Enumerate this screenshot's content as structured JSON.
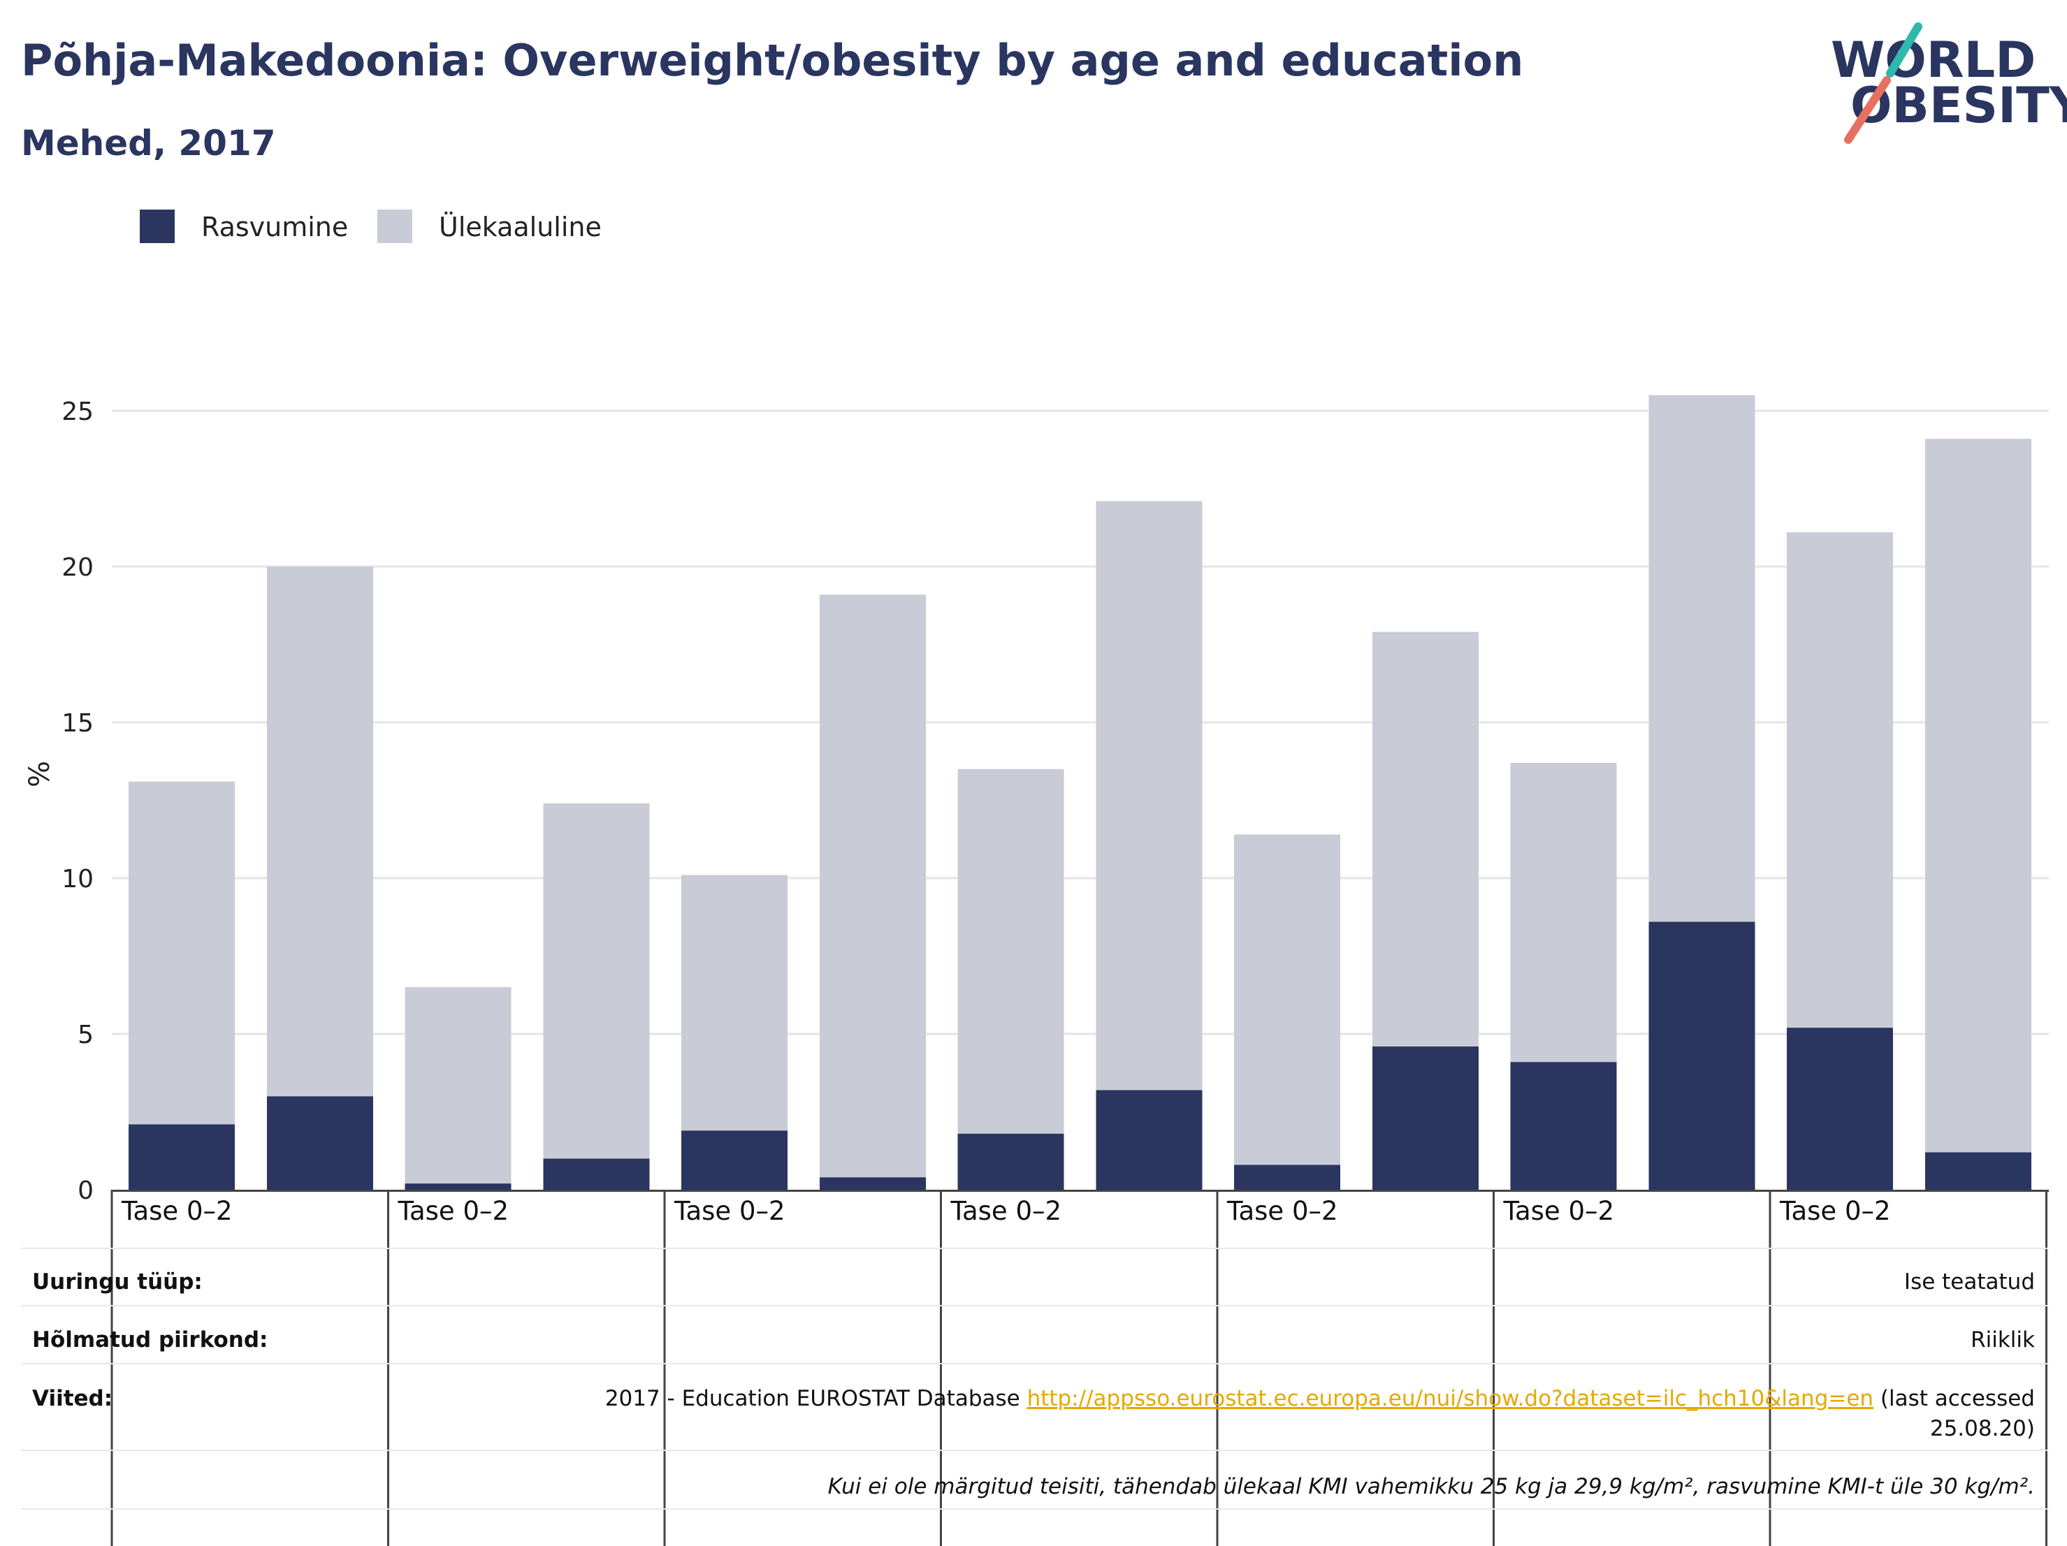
{
  "header": {
    "title": "Põhja-Makedoonia: Overweight/obesity by age and education",
    "subtitle": "Mehed, 2017"
  },
  "logo": {
    "line1": "WORLD",
    "line2": "OBESITY",
    "colors": {
      "teal": "#2fb8ac",
      "coral": "#e8705f",
      "navy": "#2a3560"
    }
  },
  "legend": [
    {
      "label": "Rasvumine",
      "color": "#2a3560"
    },
    {
      "label": "Ülekaaluline",
      "color": "#c9cbd6"
    }
  ],
  "chart_data": {
    "type": "bar",
    "stacked": true,
    "ylabel": "%",
    "ylim": [
      0,
      27
    ],
    "yticks": [
      0,
      5,
      10,
      15,
      20,
      25
    ],
    "grid": true,
    "legend_position": "top-left",
    "category_labels": [
      "Tase 0–2",
      "Tase 0–2",
      "Tase 0–2",
      "Tase 0–2",
      "Tase 0–2",
      "Tase 0–2",
      "Tase 0–2"
    ],
    "bars_per_group": 2,
    "series": [
      {
        "name": "Rasvumine",
        "color": "#2a3560",
        "values": [
          2.1,
          3.0,
          0.2,
          1.0,
          1.9,
          0.4,
          1.8,
          3.2,
          0.8,
          4.6,
          4.1,
          8.6,
          5.2,
          1.2
        ]
      },
      {
        "name": "Ülekaaluline",
        "color": "#c9cbd6",
        "values": [
          11.0,
          17.0,
          6.3,
          11.4,
          8.2,
          18.7,
          11.7,
          18.9,
          10.6,
          13.3,
          9.6,
          16.9,
          15.9,
          22.9
        ]
      }
    ]
  },
  "table": {
    "rows": [
      {
        "label": "Uuringu tüüp:",
        "value": "Ise teatatud"
      },
      {
        "label": "Hõlmatud piirkond:",
        "value": "Riiklik"
      },
      {
        "label": "Viited:",
        "value_prefix": "2017 - Education EUROSTAT Database ",
        "link": "http://appsso.eurostat.ec.europa.eu/nui/show.do?dataset=ilc_hch10&lang=en",
        "value_suffix": " (last accessed",
        "value_line2": "25.08.20)"
      }
    ],
    "note": "Kui ei ole märgitud teisiti, tähendab ülekaal KMI vahemikku 25 kg ja 29,9 kg/m², rasvumine KMI-t üle 30 kg/m²."
  }
}
